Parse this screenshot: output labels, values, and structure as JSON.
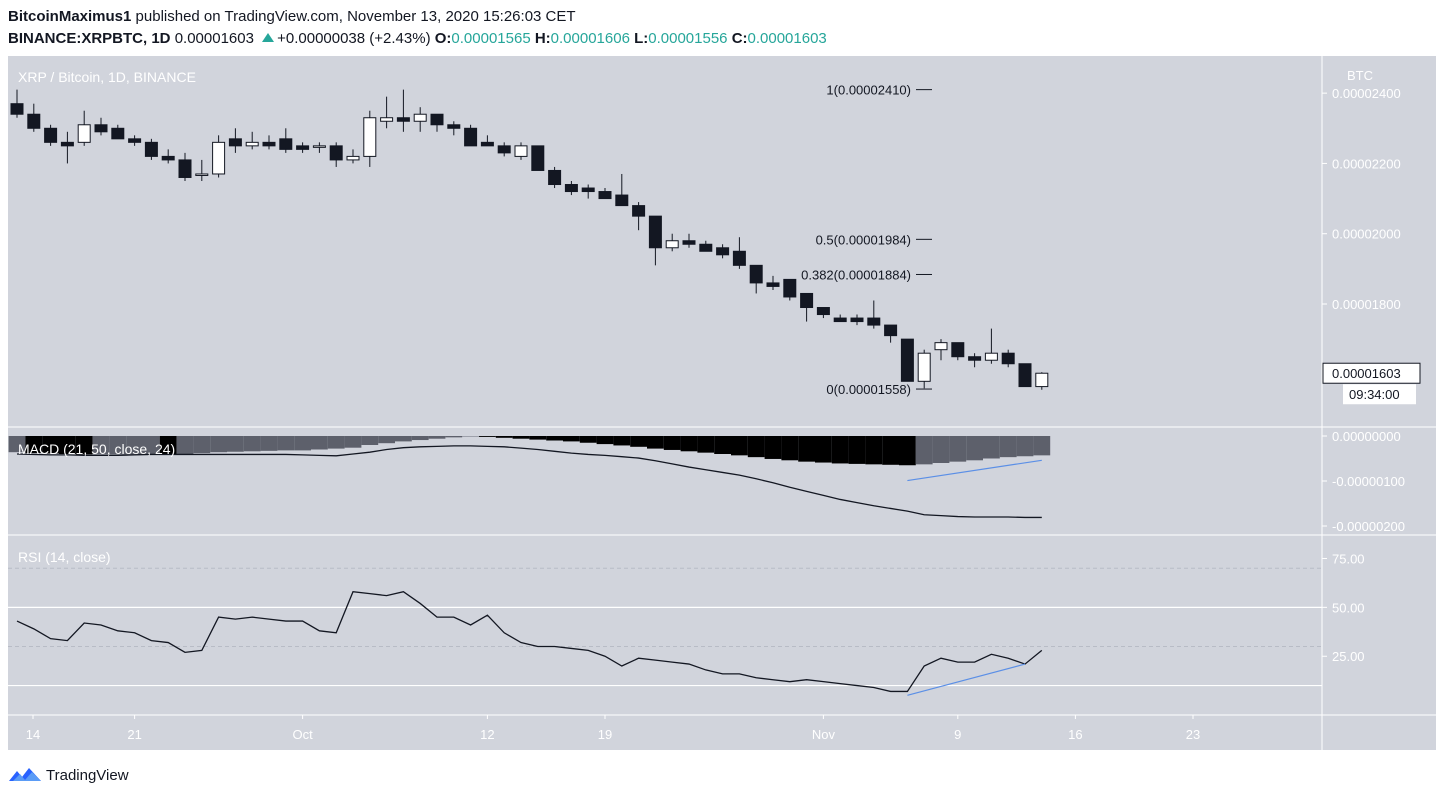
{
  "header": {
    "author": "BitcoinMaximus1",
    "published": "published on TradingView.com, November 13, 2020 15:26:03 CET",
    "symbol": "BINANCE:XRPBTC, 1D",
    "last": "0.00001603",
    "change": "+0.00000038 (+2.43%)",
    "o_label": "O:",
    "o": "0.00001565",
    "h_label": "H:",
    "h": "0.00001606",
    "l_label": "L:",
    "l": "0.00001556",
    "c_label": "C:",
    "c": "0.00001603"
  },
  "footer": {
    "brand": "TradingView"
  },
  "colors": {
    "panel_bg": "#d1d4dc",
    "up_fill": "#ffffff",
    "down_fill": "#131722",
    "line": "#131722",
    "divergence": "#5b8fe6",
    "macd_dark": "#000000",
    "macd_light": "#5d606b"
  },
  "chart_data": [
    {
      "type": "candlestick",
      "title": "XRP / Bitcoin, 1D, BINANCE",
      "ylabel": "BTC",
      "ylim": [
        1.45e-05,
        2.5e-05
      ],
      "y_ticks": [
        "0.00002400",
        "0.00002200",
        "0.00002000",
        "0.00001800"
      ],
      "last_price_label": "0.00001603",
      "countdown_label": "09:34:00",
      "x_ticks": [
        {
          "label": "14",
          "index": 0
        },
        {
          "label": "21",
          "index": 7
        },
        {
          "label": "Oct",
          "index": 17
        },
        {
          "label": "12",
          "index": 28
        },
        {
          "label": "19",
          "index": 35
        },
        {
          "label": "Nov",
          "index": 48
        },
        {
          "label": "9",
          "index": 56
        },
        {
          "label": "16",
          "index": 63
        },
        {
          "label": "23",
          "index": 70
        }
      ],
      "fib_levels": [
        {
          "label": "1(0.00002410)",
          "value": 2.41e-05
        },
        {
          "label": "0.5(0.00001984)",
          "value": 1.984e-05
        },
        {
          "label": "0.382(0.00001884)",
          "value": 1.884e-05
        },
        {
          "label": "0(0.00001558)",
          "value": 1.558e-05
        }
      ],
      "ohlc": [
        [
          2.37e-05,
          2.41e-05,
          2.33e-05,
          2.34e-05
        ],
        [
          2.34e-05,
          2.37e-05,
          2.29e-05,
          2.3e-05
        ],
        [
          2.3e-05,
          2.31e-05,
          2.25e-05,
          2.26e-05
        ],
        [
          2.26e-05,
          2.29e-05,
          2.2e-05,
          2.25e-05
        ],
        [
          2.26e-05,
          2.35e-05,
          2.25e-05,
          2.31e-05
        ],
        [
          2.31e-05,
          2.33e-05,
          2.28e-05,
          2.29e-05
        ],
        [
          2.3e-05,
          2.31e-05,
          2.27e-05,
          2.27e-05
        ],
        [
          2.27e-05,
          2.28e-05,
          2.25e-05,
          2.26e-05
        ],
        [
          2.26e-05,
          2.27e-05,
          2.21e-05,
          2.22e-05
        ],
        [
          2.22e-05,
          2.24e-05,
          2.2e-05,
          2.21e-05
        ],
        [
          2.21e-05,
          2.23e-05,
          2.15e-05,
          2.16e-05
        ],
        [
          2.17e-05,
          2.21e-05,
          2.15e-05,
          2.17e-05
        ],
        [
          2.17e-05,
          2.28e-05,
          2.16e-05,
          2.26e-05
        ],
        [
          2.27e-05,
          2.3e-05,
          2.23e-05,
          2.25e-05
        ],
        [
          2.25e-05,
          2.29e-05,
          2.24e-05,
          2.26e-05
        ],
        [
          2.26e-05,
          2.28e-05,
          2.24e-05,
          2.25e-05
        ],
        [
          2.27e-05,
          2.3e-05,
          2.23e-05,
          2.24e-05
        ],
        [
          2.25e-05,
          2.26e-05,
          2.23e-05,
          2.24e-05
        ],
        [
          2.25e-05,
          2.26e-05,
          2.23e-05,
          2.25e-05
        ],
        [
          2.25e-05,
          2.26e-05,
          2.19e-05,
          2.21e-05
        ],
        [
          2.21e-05,
          2.24e-05,
          2.2e-05,
          2.22e-05
        ],
        [
          2.22e-05,
          2.35e-05,
          2.19e-05,
          2.33e-05
        ],
        [
          2.32e-05,
          2.39e-05,
          2.3e-05,
          2.33e-05
        ],
        [
          2.33e-05,
          2.41e-05,
          2.29e-05,
          2.32e-05
        ],
        [
          2.32e-05,
          2.36e-05,
          2.29e-05,
          2.34e-05
        ],
        [
          2.34e-05,
          2.34e-05,
          2.29e-05,
          2.31e-05
        ],
        [
          2.31e-05,
          2.32e-05,
          2.28e-05,
          2.3e-05
        ],
        [
          2.3e-05,
          2.31e-05,
          2.25e-05,
          2.25e-05
        ],
        [
          2.26e-05,
          2.28e-05,
          2.25e-05,
          2.25e-05
        ],
        [
          2.25e-05,
          2.26e-05,
          2.22e-05,
          2.23e-05
        ],
        [
          2.22e-05,
          2.26e-05,
          2.21e-05,
          2.25e-05
        ],
        [
          2.25e-05,
          2.25e-05,
          2.18e-05,
          2.18e-05
        ],
        [
          2.18e-05,
          2.19e-05,
          2.13e-05,
          2.14e-05
        ],
        [
          2.14e-05,
          2.15e-05,
          2.11e-05,
          2.12e-05
        ],
        [
          2.13e-05,
          2.14e-05,
          2.1e-05,
          2.12e-05
        ],
        [
          2.12e-05,
          2.13e-05,
          2.1e-05,
          2.1e-05
        ],
        [
          2.11e-05,
          2.17e-05,
          2.09e-05,
          2.08e-05
        ],
        [
          2.08e-05,
          2.09e-05,
          2.01e-05,
          2.05e-05
        ],
        [
          2.05e-05,
          2.05e-05,
          1.91e-05,
          1.96e-05
        ],
        [
          1.96e-05,
          2e-05,
          1.95e-05,
          1.98e-05
        ],
        [
          1.98e-05,
          2e-05,
          1.96e-05,
          1.97e-05
        ],
        [
          1.97e-05,
          1.98e-05,
          1.95e-05,
          1.95e-05
        ],
        [
          1.96e-05,
          1.97e-05,
          1.93e-05,
          1.94e-05
        ],
        [
          1.95e-05,
          1.99e-05,
          1.9e-05,
          1.91e-05
        ],
        [
          1.91e-05,
          1.91e-05,
          1.83e-05,
          1.86e-05
        ],
        [
          1.86e-05,
          1.88e-05,
          1.84e-05,
          1.85e-05
        ],
        [
          1.87e-05,
          1.87e-05,
          1.81e-05,
          1.82e-05
        ],
        [
          1.83e-05,
          1.83e-05,
          1.75e-05,
          1.79e-05
        ],
        [
          1.79e-05,
          1.79e-05,
          1.76e-05,
          1.77e-05
        ],
        [
          1.76e-05,
          1.77e-05,
          1.75e-05,
          1.75e-05
        ],
        [
          1.76e-05,
          1.77e-05,
          1.74e-05,
          1.75e-05
        ],
        [
          1.76e-05,
          1.81e-05,
          1.73e-05,
          1.74e-05
        ],
        [
          1.74e-05,
          1.74e-05,
          1.69e-05,
          1.71e-05
        ],
        [
          1.7e-05,
          1.7e-05,
          1.59e-05,
          1.58e-05
        ],
        [
          1.58e-05,
          1.67e-05,
          1.56e-05,
          1.66e-05
        ],
        [
          1.67e-05,
          1.7e-05,
          1.64e-05,
          1.69e-05
        ],
        [
          1.69e-05,
          1.69e-05,
          1.64e-05,
          1.65e-05
        ],
        [
          1.65e-05,
          1.66e-05,
          1.62e-05,
          1.64e-05
        ],
        [
          1.64e-05,
          1.73e-05,
          1.63e-05,
          1.66e-05
        ],
        [
          1.66e-05,
          1.67e-05,
          1.62e-05,
          1.63e-05
        ],
        [
          1.63e-05,
          1.63e-05,
          1.57e-05,
          1.565e-05
        ],
        [
          1.565e-05,
          1.606e-05,
          1.556e-05,
          1.603e-05
        ]
      ]
    },
    {
      "type": "macd",
      "title": "MACD (21, 50, close, 24)",
      "y_ticks": [
        "0.00000000",
        "-0.00000100",
        "-0.00000200"
      ],
      "ylim": [
        -2.2e-06,
        2e-07
      ],
      "histogram": [
        -3.6e-07,
        -3.8e-07,
        -3.9e-07,
        -4e-07,
        -4.1e-07,
        -4.1e-07,
        -4.1e-07,
        -4.1e-07,
        -4.1e-07,
        -4.2e-07,
        -4.2e-07,
        -3.8e-07,
        -3.6e-07,
        -3.5e-07,
        -3.4e-07,
        -3.3e-07,
        -3.2e-07,
        -3.2e-07,
        -3e-07,
        -2.8e-07,
        -2.6e-07,
        -2e-07,
        -1.6e-07,
        -1.2e-07,
        -9e-08,
        -6e-08,
        -3e-08,
        -1e-08,
        -2e-08,
        -4e-08,
        -6e-08,
        -8e-08,
        -1e-07,
        -1.2e-07,
        -1.5e-07,
        -1.8e-07,
        -2.1e-07,
        -2.4e-07,
        -2.8e-07,
        -3.1e-07,
        -3.4e-07,
        -3.7e-07,
        -4e-07,
        -4.3e-07,
        -4.7e-07,
        -5.1e-07,
        -5.4e-07,
        -5.7e-07,
        -5.9e-07,
        -6.1e-07,
        -6.2e-07,
        -6.3e-07,
        -6.4e-07,
        -6.5e-07,
        -6.3e-07,
        -6e-07,
        -5.7e-07,
        -5.4e-07,
        -5e-07,
        -4.7e-07,
        -4.5e-07,
        -4.3e-07
      ],
      "line": [
        -4e-07,
        -4.1e-07,
        -4.2e-07,
        -4.2e-07,
        -4.3e-07,
        -4.3e-07,
        -4.3e-07,
        -4.2e-07,
        -4.1e-07,
        -4.1e-07,
        -4.1e-07,
        -4.1e-07,
        -4.1e-07,
        -4.1e-07,
        -4.1e-07,
        -4.1e-07,
        -4.1e-07,
        -4.2e-07,
        -4.3e-07,
        -4.4e-07,
        -4e-07,
        -3.6e-07,
        -3e-07,
        -2.6e-07,
        -2.4e-07,
        -2.3e-07,
        -2.2e-07,
        -2.2e-07,
        -2.3e-07,
        -2.4e-07,
        -2.7e-07,
        -3e-07,
        -3.4e-07,
        -3.8e-07,
        -4.1e-07,
        -4.3e-07,
        -4.6e-07,
        -4.9e-07,
        -5.5e-07,
        -6.2e-07,
        -6.9e-07,
        -7.5e-07,
        -8.1e-07,
        -8.7e-07,
        -9.5e-07,
        -1.04e-06,
        -1.14e-06,
        -1.23e-06,
        -1.32e-06,
        -1.41e-06,
        -1.48e-06,
        -1.55e-06,
        -1.61e-06,
        -1.67e-06,
        -1.75e-06,
        -1.77e-06,
        -1.79e-06,
        -1.8e-06,
        -1.8e-06,
        -1.8e-06,
        -1.81e-06,
        -1.81e-06
      ],
      "divergence_line": {
        "from": [
          53,
          -9.9e-07
        ],
        "to": [
          61,
          -5.4e-07
        ]
      }
    },
    {
      "type": "line",
      "title": "RSI (14, close)",
      "y_ticks": [
        "75.00",
        "50.00",
        "25.00"
      ],
      "ylim": [
        -3,
        87
      ],
      "bands": [
        70,
        50,
        30,
        10
      ],
      "values": [
        43,
        39,
        34,
        33,
        42,
        41,
        38,
        37,
        33,
        32,
        27,
        28,
        45,
        44,
        45,
        44,
        43,
        43,
        38,
        37,
        58,
        57,
        56,
        58,
        52,
        45,
        45,
        41,
        46,
        37,
        32,
        30,
        30,
        29,
        28,
        25,
        20,
        24,
        23,
        22,
        21,
        18,
        16,
        16,
        14,
        13,
        12,
        13,
        12,
        11,
        10,
        9,
        7,
        7,
        20,
        24,
        22,
        22,
        26,
        24,
        21,
        28
      ],
      "divergence_line": {
        "from": [
          53,
          5
        ],
        "to": [
          60,
          21
        ]
      }
    }
  ]
}
